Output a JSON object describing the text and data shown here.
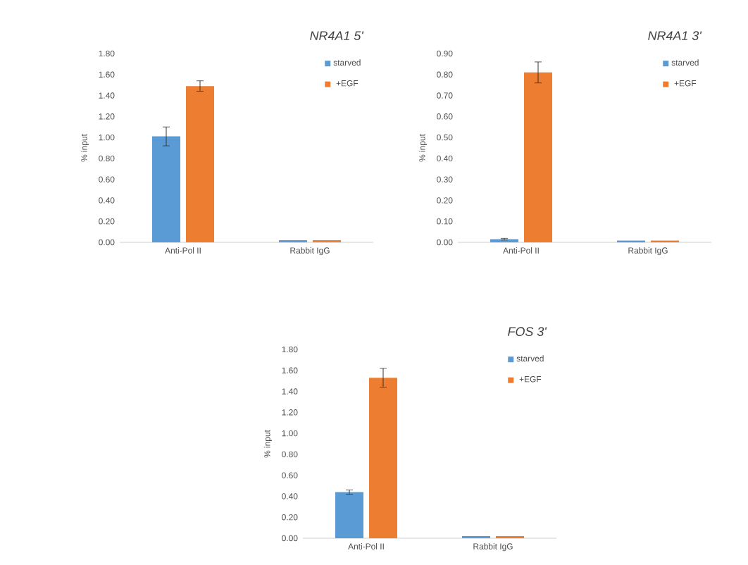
{
  "chart_data": [
    {
      "type": "bar",
      "title": "*NR4A1* 5'",
      "ylabel": "% input",
      "categories": [
        "Anti-Pol II",
        "Rabbit IgG"
      ],
      "ylim": [
        0,
        1.8
      ],
      "yticks": [
        {
          "value": 0,
          "label": "0.00"
        },
        {
          "value": 0.2,
          "label": "0.20"
        },
        {
          "value": 0.4,
          "label": "0.40"
        },
        {
          "value": 0.6,
          "label": "0.60"
        },
        {
          "value": 0.8,
          "label": "0.80"
        },
        {
          "value": 1.0,
          "label": "1.00"
        },
        {
          "value": 1.2,
          "label": "1.20"
        },
        {
          "value": 1.4,
          "label": "1.40"
        },
        {
          "value": 1.6,
          "label": "1.60"
        },
        {
          "value": 1.8,
          "label": "1.80"
        }
      ],
      "legend": "top right",
      "series": [
        {
          "name": "starved",
          "color": "#5b9bd5",
          "values": [
            1.01,
            0.02
          ],
          "errors": [
            0.09,
            null
          ]
        },
        {
          "name": "+EGF",
          "color": "#ed7d31",
          "values": [
            1.49,
            0.02
          ],
          "errors": [
            0.05,
            null
          ]
        }
      ]
    },
    {
      "type": "bar",
      "title": "*NR4A1* 3'",
      "ylabel": "% input",
      "categories": [
        "Anti-Pol II",
        "Rabbit IgG"
      ],
      "ylim": [
        0,
        0.9
      ],
      "yticks": [
        {
          "value": 0,
          "label": "0.00"
        },
        {
          "value": 0.1,
          "label": "0.10"
        },
        {
          "value": 0.2,
          "label": "0.20"
        },
        {
          "value": 0.3,
          "label": "0.30"
        },
        {
          "value": 0.4,
          "label": "0.40"
        },
        {
          "value": 0.5,
          "label": "0.50"
        },
        {
          "value": 0.6,
          "label": "0.60"
        },
        {
          "value": 0.7,
          "label": "0.70"
        },
        {
          "value": 0.8,
          "label": "0.80"
        },
        {
          "value": 0.9,
          "label": "0.90"
        }
      ],
      "legend": "top right",
      "series": [
        {
          "name": "starved",
          "color": "#5b9bd5",
          "values": [
            0.015,
            0.008
          ],
          "errors": [
            0.004,
            null
          ]
        },
        {
          "name": "+EGF",
          "color": "#ed7d31",
          "values": [
            0.81,
            0.008
          ],
          "errors": [
            0.05,
            null
          ]
        }
      ]
    },
    {
      "type": "bar",
      "title": "*FOS* 3'",
      "ylabel": "% input",
      "categories": [
        "Anti-Pol II",
        "Rabbit IgG"
      ],
      "ylim": [
        0,
        1.8
      ],
      "yticks": [
        {
          "value": 0,
          "label": "0.00"
        },
        {
          "value": 0.2,
          "label": "0.20"
        },
        {
          "value": 0.4,
          "label": "0.40"
        },
        {
          "value": 0.6,
          "label": "0.60"
        },
        {
          "value": 0.8,
          "label": "0.80"
        },
        {
          "value": 1.0,
          "label": "1.00"
        },
        {
          "value": 1.2,
          "label": "1.20"
        },
        {
          "value": 1.4,
          "label": "1.40"
        },
        {
          "value": 1.6,
          "label": "1.60"
        },
        {
          "value": 1.8,
          "label": "1.80"
        }
      ],
      "legend": "top right",
      "series": [
        {
          "name": "starved",
          "color": "#5b9bd5",
          "values": [
            0.44,
            0.02
          ],
          "errors": [
            0.02,
            null
          ]
        },
        {
          "name": "+EGF",
          "color": "#ed7d31",
          "values": [
            1.53,
            0.02
          ],
          "errors": [
            0.09,
            null
          ]
        }
      ]
    }
  ]
}
